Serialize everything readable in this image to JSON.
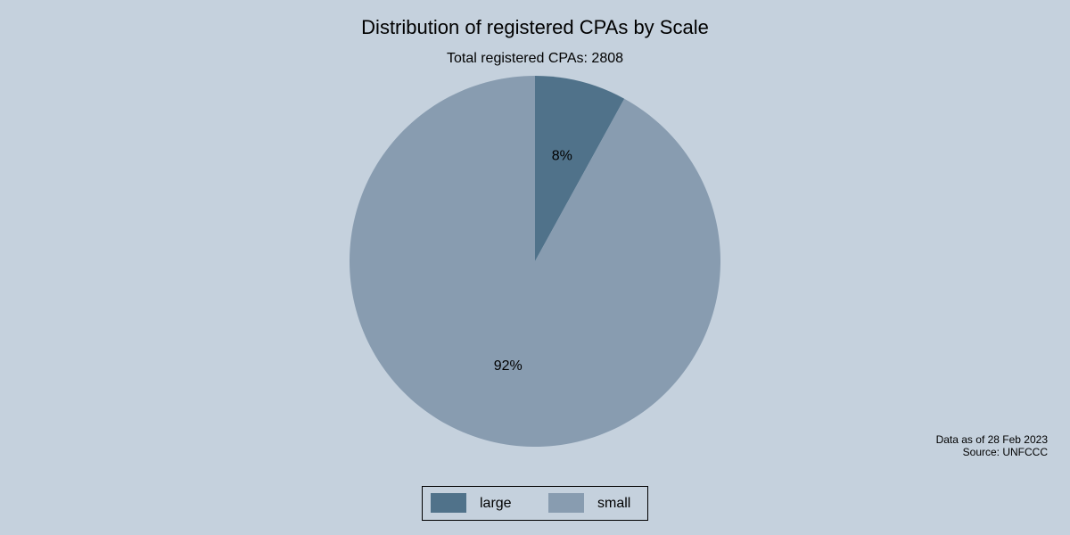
{
  "chart_data": {
    "type": "pie",
    "title": "Distribution of registered CPAs by Scale",
    "subtitle": "Total registered CPAs: 2808",
    "annotations": [
      "Data as of 28 Feb 2023",
      "Source: UNFCCC"
    ],
    "categories": [
      "large",
      "small"
    ],
    "values": [
      8,
      92
    ],
    "value_labels": [
      "8%",
      "92%"
    ],
    "colors": [
      "#50728a",
      "#889cb0"
    ],
    "legend": "bottom"
  }
}
